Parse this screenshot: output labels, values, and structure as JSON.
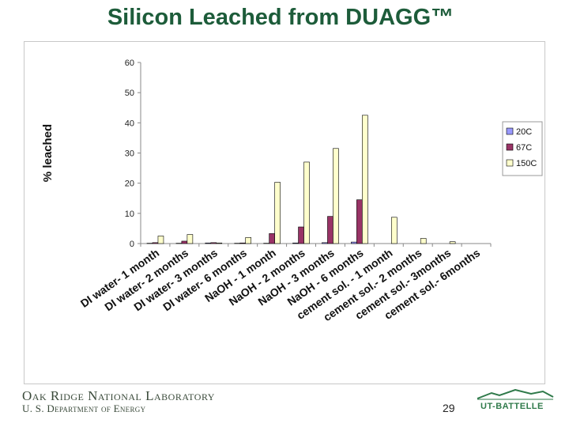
{
  "slide": {
    "title": "Silicon Leached from DUAGG™",
    "org_line1": "Oak Ridge National Laboratory",
    "org_line2": "U. S. Department of Energy",
    "page_number": "29",
    "logo_text": "UT-BATTELLE"
  },
  "colors": {
    "title": "#1d5c3a",
    "series_20C": "#9999ff",
    "series_67C": "#993366",
    "series_150C": "#ffffcc"
  },
  "chart_data": {
    "type": "bar",
    "ylabel": "% leached",
    "xlabel": "",
    "ylim": [
      0,
      60
    ],
    "yticks": [
      0,
      10,
      20,
      30,
      40,
      50,
      60
    ],
    "grid": false,
    "legend_position": "right",
    "categories": [
      "DI water- 1 month",
      "DI water- 2 months",
      "DI water- 3 months",
      "DI water- 6 months",
      "NaOH - 1 month",
      "NaOH - 2 months",
      "NaOH - 3 months",
      "NaOH - 6 months",
      "cement sol. - 1 month",
      "cement sol.- 2 months",
      "cement sol.- 3months",
      "cement sol.- 6months"
    ],
    "series": [
      {
        "name": "20C",
        "values": [
          0.1,
          0.1,
          0.2,
          0.1,
          0.1,
          0.2,
          0.3,
          0.5,
          0,
          0,
          0,
          0
        ]
      },
      {
        "name": "67C",
        "values": [
          0.3,
          0.8,
          0.3,
          0.2,
          3.3,
          5.5,
          9.0,
          14.5,
          0,
          0,
          0,
          0
        ]
      },
      {
        "name": "150C",
        "values": [
          2.5,
          3.0,
          0.2,
          2.0,
          20.3,
          27.0,
          31.5,
          42.5,
          8.7,
          1.7,
          0.6,
          0
        ]
      }
    ]
  }
}
